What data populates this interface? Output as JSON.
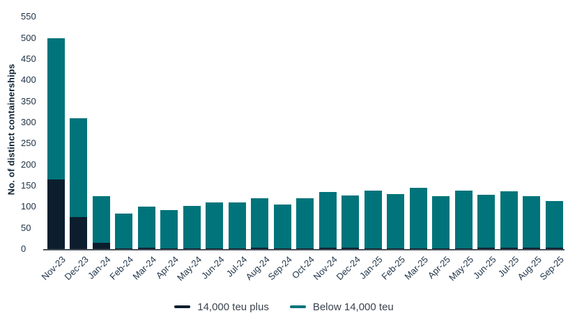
{
  "chart_data": {
    "type": "bar",
    "stacked": true,
    "title": "",
    "ylabel": "No. of distinct containerships",
    "xlabel": "",
    "ylim": [
      0,
      550
    ],
    "ytick_step": 50,
    "grid": false,
    "legend_position": "bottom",
    "categories": [
      "Nov-23",
      "Dec-23",
      "Jan-24",
      "Feb-24",
      "Mar-24",
      "Apr-24",
      "May-24",
      "Jun-24",
      "Jul-24",
      "Aug-24",
      "Sep-24",
      "Oct-24",
      "Nov-24",
      "Dec-24",
      "Jan-25",
      "Feb-25",
      "Mar-25",
      "Apr-25",
      "May-25",
      "Jun-25",
      "Jul-25",
      "Aug-25",
      "Sep-25"
    ],
    "series": [
      {
        "name": "14,000 teu plus",
        "color": "#0c1e2e",
        "values": [
          165,
          75,
          15,
          1,
          3,
          1,
          2,
          2,
          2,
          3,
          2,
          2,
          3,
          3,
          2,
          2,
          2,
          2,
          2,
          3,
          4,
          4,
          3
        ]
      },
      {
        "name": "Below 14,000 teu",
        "color": "#00747a",
        "values": [
          335,
          235,
          110,
          83,
          97,
          91,
          100,
          108,
          108,
          118,
          103,
          118,
          132,
          124,
          137,
          128,
          143,
          124,
          137,
          125,
          132,
          122,
          110
        ]
      }
    ]
  },
  "colors": {
    "axis_line": "#4a5158",
    "tick_text": "#1d3144",
    "legend_text": "#3b434d"
  }
}
